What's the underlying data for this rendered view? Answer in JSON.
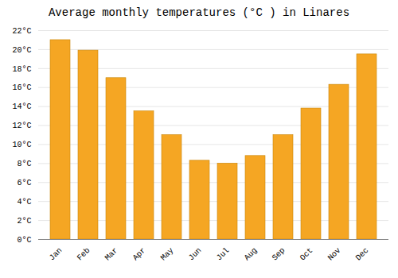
{
  "chart_data": {
    "type": "bar",
    "title": "Average monthly temperatures (°C ) in Linares",
    "categories": [
      "Jan",
      "Feb",
      "Mar",
      "Apr",
      "May",
      "Jun",
      "Jul",
      "Aug",
      "Sep",
      "Oct",
      "Nov",
      "Dec"
    ],
    "values": [
      21.0,
      19.9,
      17.0,
      13.5,
      11.0,
      8.3,
      8.0,
      8.8,
      11.0,
      13.8,
      16.3,
      19.5
    ],
    "color": "#F5A623",
    "ylim": [
      0,
      22
    ],
    "yticks": [
      {
        "value": 0,
        "label": "0°C"
      },
      {
        "value": 2,
        "label": "2°C"
      },
      {
        "value": 4,
        "label": "4°C"
      },
      {
        "value": 6,
        "label": "6°C"
      },
      {
        "value": 8,
        "label": "8°C"
      },
      {
        "value": 10,
        "label": "10°C"
      },
      {
        "value": 12,
        "label": "12°C"
      },
      {
        "value": 14,
        "label": "14°C"
      },
      {
        "value": 16,
        "label": "16°C"
      },
      {
        "value": 18,
        "label": "18°C"
      },
      {
        "value": 20,
        "label": "20°C"
      },
      {
        "value": 22,
        "label": "22°C"
      }
    ],
    "grid": true
  }
}
